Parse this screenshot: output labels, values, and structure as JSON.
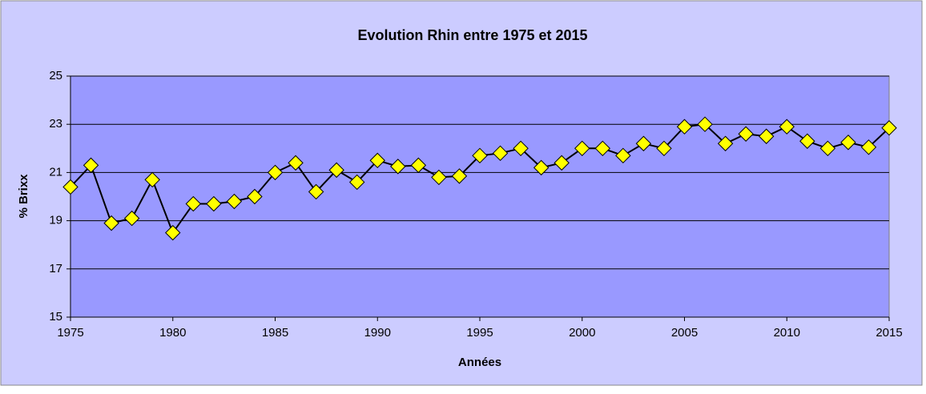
{
  "chart_data": {
    "type": "line",
    "title": "Evolution Rhin entre 1975 et 2015",
    "x_label": "Années",
    "y_label": "% Brixx",
    "x": [
      1975,
      1976,
      1977,
      1978,
      1979,
      1980,
      1981,
      1982,
      1983,
      1984,
      1985,
      1986,
      1987,
      1988,
      1989,
      1990,
      1991,
      1992,
      1993,
      1994,
      1995,
      1996,
      1997,
      1998,
      1999,
      2000,
      2001,
      2002,
      2003,
      2004,
      2005,
      2006,
      2007,
      2008,
      2009,
      2010,
      2011,
      2012,
      2013,
      2014,
      2015
    ],
    "series": [
      {
        "name": "Rhin",
        "color": "#ffff00",
        "values": [
          20.4,
          21.3,
          18.9,
          19.1,
          20.7,
          18.5,
          19.7,
          19.7,
          19.8,
          20.0,
          21.0,
          21.4,
          20.2,
          21.1,
          20.6,
          21.5,
          21.25,
          21.3,
          20.8,
          20.85,
          21.7,
          21.8,
          22.0,
          21.2,
          21.4,
          22.0,
          22.0,
          21.7,
          22.2,
          22.0,
          22.9,
          23.0,
          22.2,
          22.6,
          22.5,
          22.9,
          22.3,
          22.0,
          22.25,
          22.05,
          22.85
        ]
      }
    ],
    "xlim": [
      1975,
      2015
    ],
    "xticks": [
      1975,
      1980,
      1985,
      1990,
      1995,
      2000,
      2005,
      2010,
      2015
    ],
    "ylim": [
      15,
      25
    ],
    "yticks": [
      15,
      17,
      19,
      21,
      23,
      25
    ],
    "grid": true
  }
}
